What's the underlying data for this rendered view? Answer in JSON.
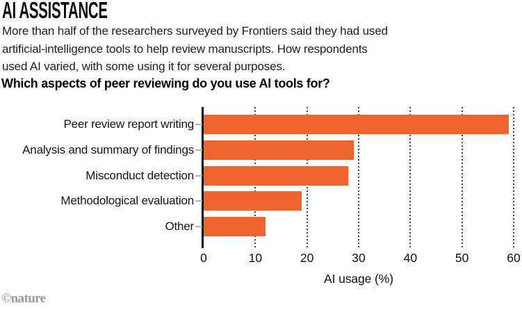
{
  "header": {
    "title": "AI ASSISTANCE",
    "subtitle_lines": [
      "More than half of the researchers surveyed by Frontiers said they had used",
      "artificial-intelligence tools to help review manuscripts. How respondents",
      "used AI varied, with some using it for several purposes."
    ],
    "question": "Which aspects of peer reviewing do you use AI tools for?"
  },
  "chart_data": {
    "type": "bar",
    "orientation": "horizontal",
    "title": "Which aspects of peer reviewing do you use AI tools for?",
    "categories": [
      "Peer review report writing",
      "Analysis and summary of findings",
      "Misconduct detection",
      "Methodological evaluation",
      "Other"
    ],
    "values": [
      59,
      29,
      28,
      19,
      12
    ],
    "xlabel": "AI usage (%)",
    "xticks": [
      0,
      10,
      20,
      30,
      40,
      50,
      60
    ],
    "xlim": [
      0,
      60
    ],
    "grid": "vertical-dotted",
    "legend": "none",
    "bar_color": "#F0642F"
  },
  "footer": {
    "credit": "©nature"
  },
  "colors": {
    "accent": "#F0642F",
    "text": "#141414",
    "gridline": "#414141",
    "y_tick": "#b5b5b5",
    "credit_gray": "#9b9b9b"
  }
}
